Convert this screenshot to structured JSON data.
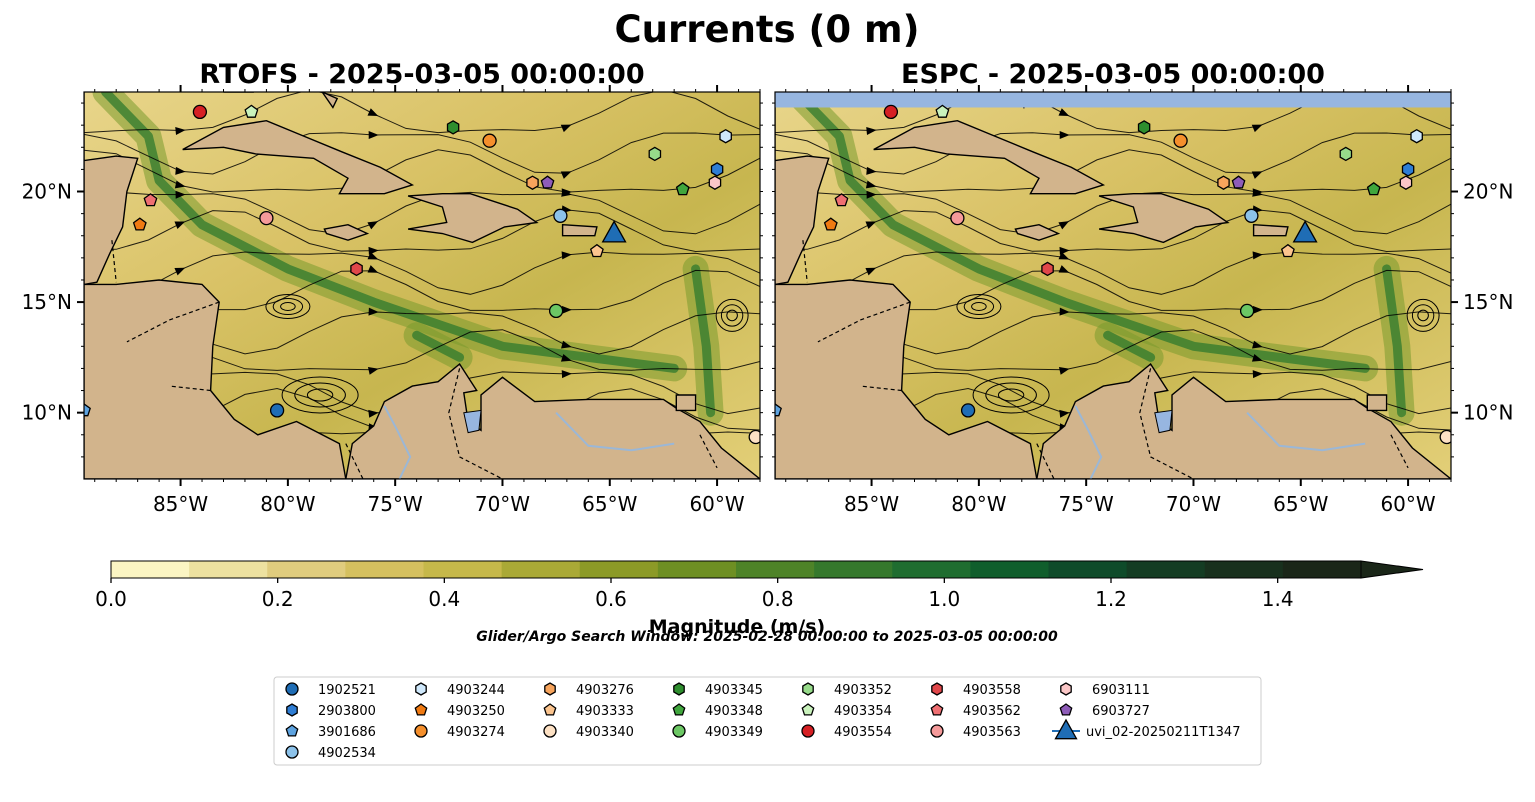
{
  "figure": {
    "title": "Currents (0 m)",
    "search_window": "Glider/Argo Search Window: 2025-02-28 00:00:00 to 2025-03-05 00:00:00"
  },
  "chart_data": [
    {
      "type": "heatmap",
      "title": "RTOFS - 2025-03-05 00:00:00",
      "variable": "current magnitude with streamlines",
      "xlim": [
        -89.5,
        -58
      ],
      "ylim": [
        7,
        24.5
      ],
      "x_ticks": [
        -85,
        -80,
        -75,
        -70,
        -65,
        -60
      ],
      "x_tick_labels": [
        "85°W",
        "80°W",
        "75°W",
        "70°W",
        "65°W",
        "60°W"
      ],
      "y_ticks": [
        10,
        15,
        20
      ],
      "y_tick_labels": [
        "10°N",
        "15°N",
        "20°N"
      ],
      "y_tick_side": "left"
    },
    {
      "type": "heatmap",
      "title": "ESPC - 2025-03-05 00:00:00",
      "variable": "current magnitude with streamlines",
      "xlim": [
        -89.5,
        -58
      ],
      "ylim": [
        7,
        24.5
      ],
      "x_ticks": [
        -85,
        -80,
        -75,
        -70,
        -65,
        -60
      ],
      "x_tick_labels": [
        "85°W",
        "80°W",
        "75°W",
        "70°W",
        "65°W",
        "60°W"
      ],
      "y_ticks": [
        10,
        15,
        20
      ],
      "y_tick_labels": [
        "10°N",
        "15°N",
        "20°N"
      ],
      "y_tick_side": "right",
      "no_data_band_lat": [
        23.8,
        24.5
      ]
    }
  ],
  "colorbar": {
    "label": "Magnitude (m/s)",
    "range": [
      0,
      1.5
    ],
    "extend": "max",
    "ticks": [
      0.0,
      0.2,
      0.4,
      0.6,
      0.8,
      1.0,
      1.2,
      1.4
    ],
    "tick_labels": [
      "0.0",
      "0.2",
      "0.4",
      "0.6",
      "0.8",
      "1.0",
      "1.2",
      "1.4"
    ],
    "colors": [
      "#fbf5c3",
      "#ede1a0",
      "#e0cc7e",
      "#d5c05f",
      "#c6b84a",
      "#aaa936",
      "#8c9a27",
      "#6e8f23",
      "#4e8328",
      "#35782c",
      "#1f6d30",
      "#105e2c",
      "#0f4b2a",
      "#143c23",
      "#18301d",
      "#1a2618"
    ]
  },
  "legend": {
    "columns": [
      [
        {
          "id": "1902521",
          "marker": "circle",
          "color": "#1f6db5"
        },
        {
          "id": "2903800",
          "marker": "hexagon",
          "color": "#2e7dd4"
        },
        {
          "id": "3901686",
          "marker": "pentagon",
          "color": "#5da3e0"
        },
        {
          "id": "4902534",
          "marker": "circle",
          "color": "#8cc2ea"
        }
      ],
      [
        {
          "id": "4903244",
          "marker": "hexagon",
          "color": "#cfe8fb"
        },
        {
          "id": "4903250",
          "marker": "pentagon",
          "color": "#f07a12"
        },
        {
          "id": "4903274",
          "marker": "circle",
          "color": "#f58f2c"
        }
      ],
      [
        {
          "id": "4903276",
          "marker": "hexagon",
          "color": "#f7a45c"
        },
        {
          "id": "4903333",
          "marker": "pentagon",
          "color": "#fbc48e"
        },
        {
          "id": "4903340",
          "marker": "circle",
          "color": "#fde1c4"
        }
      ],
      [
        {
          "id": "4903345",
          "marker": "hexagon",
          "color": "#2e8e2e"
        },
        {
          "id": "4903348",
          "marker": "pentagon",
          "color": "#40a63d"
        },
        {
          "id": "4903349",
          "marker": "circle",
          "color": "#6cc764"
        }
      ],
      [
        {
          "id": "4903352",
          "marker": "hexagon",
          "color": "#97db8a"
        },
        {
          "id": "4903354",
          "marker": "pentagon",
          "color": "#c9f2bc"
        },
        {
          "id": "4903554",
          "marker": "circle",
          "color": "#d62024"
        }
      ],
      [
        {
          "id": "4903558",
          "marker": "hexagon",
          "color": "#e0474a"
        },
        {
          "id": "4903562",
          "marker": "pentagon",
          "color": "#ef6f72"
        },
        {
          "id": "4903563",
          "marker": "circle",
          "color": "#f59a9a"
        }
      ],
      [
        {
          "id": "6903111",
          "marker": "hexagon",
          "color": "#fbc7c7"
        },
        {
          "id": "6903727",
          "marker": "pentagon",
          "color": "#8e5cb8"
        },
        {
          "id": "uvi_02-20250211T1347",
          "marker": "triangle",
          "color": "#1f6db5"
        }
      ]
    ]
  },
  "float_positions": [
    {
      "id": "4903554",
      "marker": "circle",
      "color": "#d62024",
      "lon": -84.1,
      "lat": 23.6
    },
    {
      "id": "4903354",
      "marker": "pentagon",
      "color": "#c9f2bc",
      "lon": -81.7,
      "lat": 23.6
    },
    {
      "id": "4903345",
      "marker": "hexagon",
      "color": "#2e8e2e",
      "lon": -72.3,
      "lat": 22.9
    },
    {
      "id": "4903274",
      "marker": "circle",
      "color": "#f58f2c",
      "lon": -70.6,
      "lat": 22.3
    },
    {
      "id": "4903244",
      "marker": "hexagon",
      "color": "#cfe8fb",
      "lon": -59.6,
      "lat": 22.5
    },
    {
      "id": "4903352",
      "marker": "hexagon",
      "color": "#97db8a",
      "lon": -62.9,
      "lat": 21.7
    },
    {
      "id": "2903800",
      "marker": "hexagon",
      "color": "#2e7dd4",
      "lon": -60.0,
      "lat": 21.0
    },
    {
      "id": "6903111",
      "marker": "hexagon",
      "color": "#fbc7c7",
      "lon": -60.1,
      "lat": 20.4
    },
    {
      "id": "4903348",
      "marker": "pentagon",
      "color": "#40a63d",
      "lon": -61.6,
      "lat": 20.1
    },
    {
      "id": "4903276",
      "marker": "hexagon",
      "color": "#f7a45c",
      "lon": -68.6,
      "lat": 20.4
    },
    {
      "id": "6903727",
      "marker": "pentagon",
      "color": "#8e5cb8",
      "lon": -67.9,
      "lat": 20.4
    },
    {
      "id": "4903562",
      "marker": "pentagon",
      "color": "#ef6f72",
      "lon": -86.4,
      "lat": 19.6
    },
    {
      "id": "4903250",
      "marker": "pentagon",
      "color": "#f07a12",
      "lon": -86.9,
      "lat": 18.5
    },
    {
      "id": "4903563",
      "marker": "circle",
      "color": "#f59a9a",
      "lon": -81.0,
      "lat": 18.8
    },
    {
      "id": "4902534",
      "marker": "circle",
      "color": "#8cc2ea",
      "lon": -67.3,
      "lat": 18.9
    },
    {
      "id": "uvi_02-20250211T1347",
      "marker": "triangle",
      "color": "#1f6db5",
      "lon": -64.8,
      "lat": 18.1
    },
    {
      "id": "4903333",
      "marker": "pentagon",
      "color": "#fbc48e",
      "lon": -65.6,
      "lat": 17.3
    },
    {
      "id": "4903558",
      "marker": "hexagon",
      "color": "#e0474a",
      "lon": -76.8,
      "lat": 16.5
    },
    {
      "id": "4903349",
      "marker": "circle",
      "color": "#6cc764",
      "lon": -67.5,
      "lat": 14.6
    },
    {
      "id": "1902521",
      "marker": "circle",
      "color": "#1f6db5",
      "lon": -80.5,
      "lat": 10.1
    },
    {
      "id": "3901686",
      "marker": "pentagon",
      "color": "#5da3e0",
      "lon": -89.5,
      "lat": 10.1
    },
    {
      "id": "4903340",
      "marker": "circle",
      "color": "#fde1c4",
      "lon": -58.2,
      "lat": 8.9
    }
  ]
}
